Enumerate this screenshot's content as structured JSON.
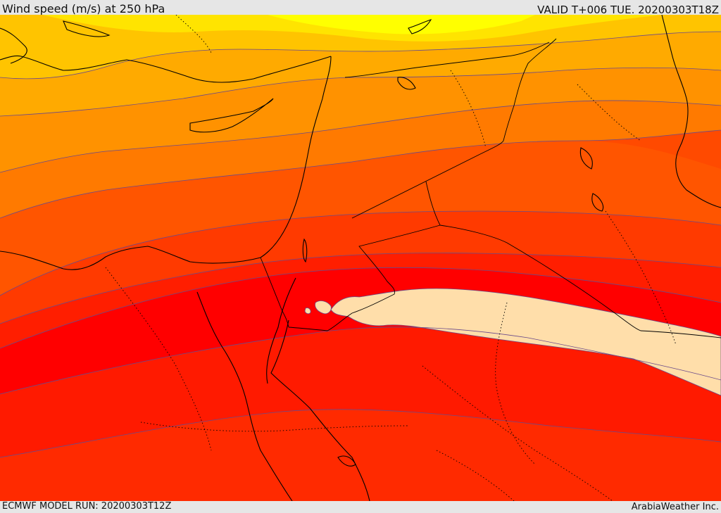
{
  "header": {
    "title": "Wind speed (m/s) at 250 hPa",
    "valid": "VALID T+006 TUE. 20200303T18Z"
  },
  "footer": {
    "model_run": "ECMWF MODEL RUN: 20200303T12Z",
    "credit": "ArabiaWeather Inc."
  },
  "map": {
    "field": "wind speed",
    "level": "250 hPa",
    "band_colors": [
      "#ffff00",
      "#ffe600",
      "#ffc400",
      "#ffaa00",
      "#ff8c00",
      "#ff7000",
      "#ff5200",
      "#ff3300",
      "#ff0000",
      "#ff2400",
      "#ffdeaa"
    ],
    "contour_color": "#6a4a8a",
    "max_zone_color": "#ffdeaa"
  }
}
